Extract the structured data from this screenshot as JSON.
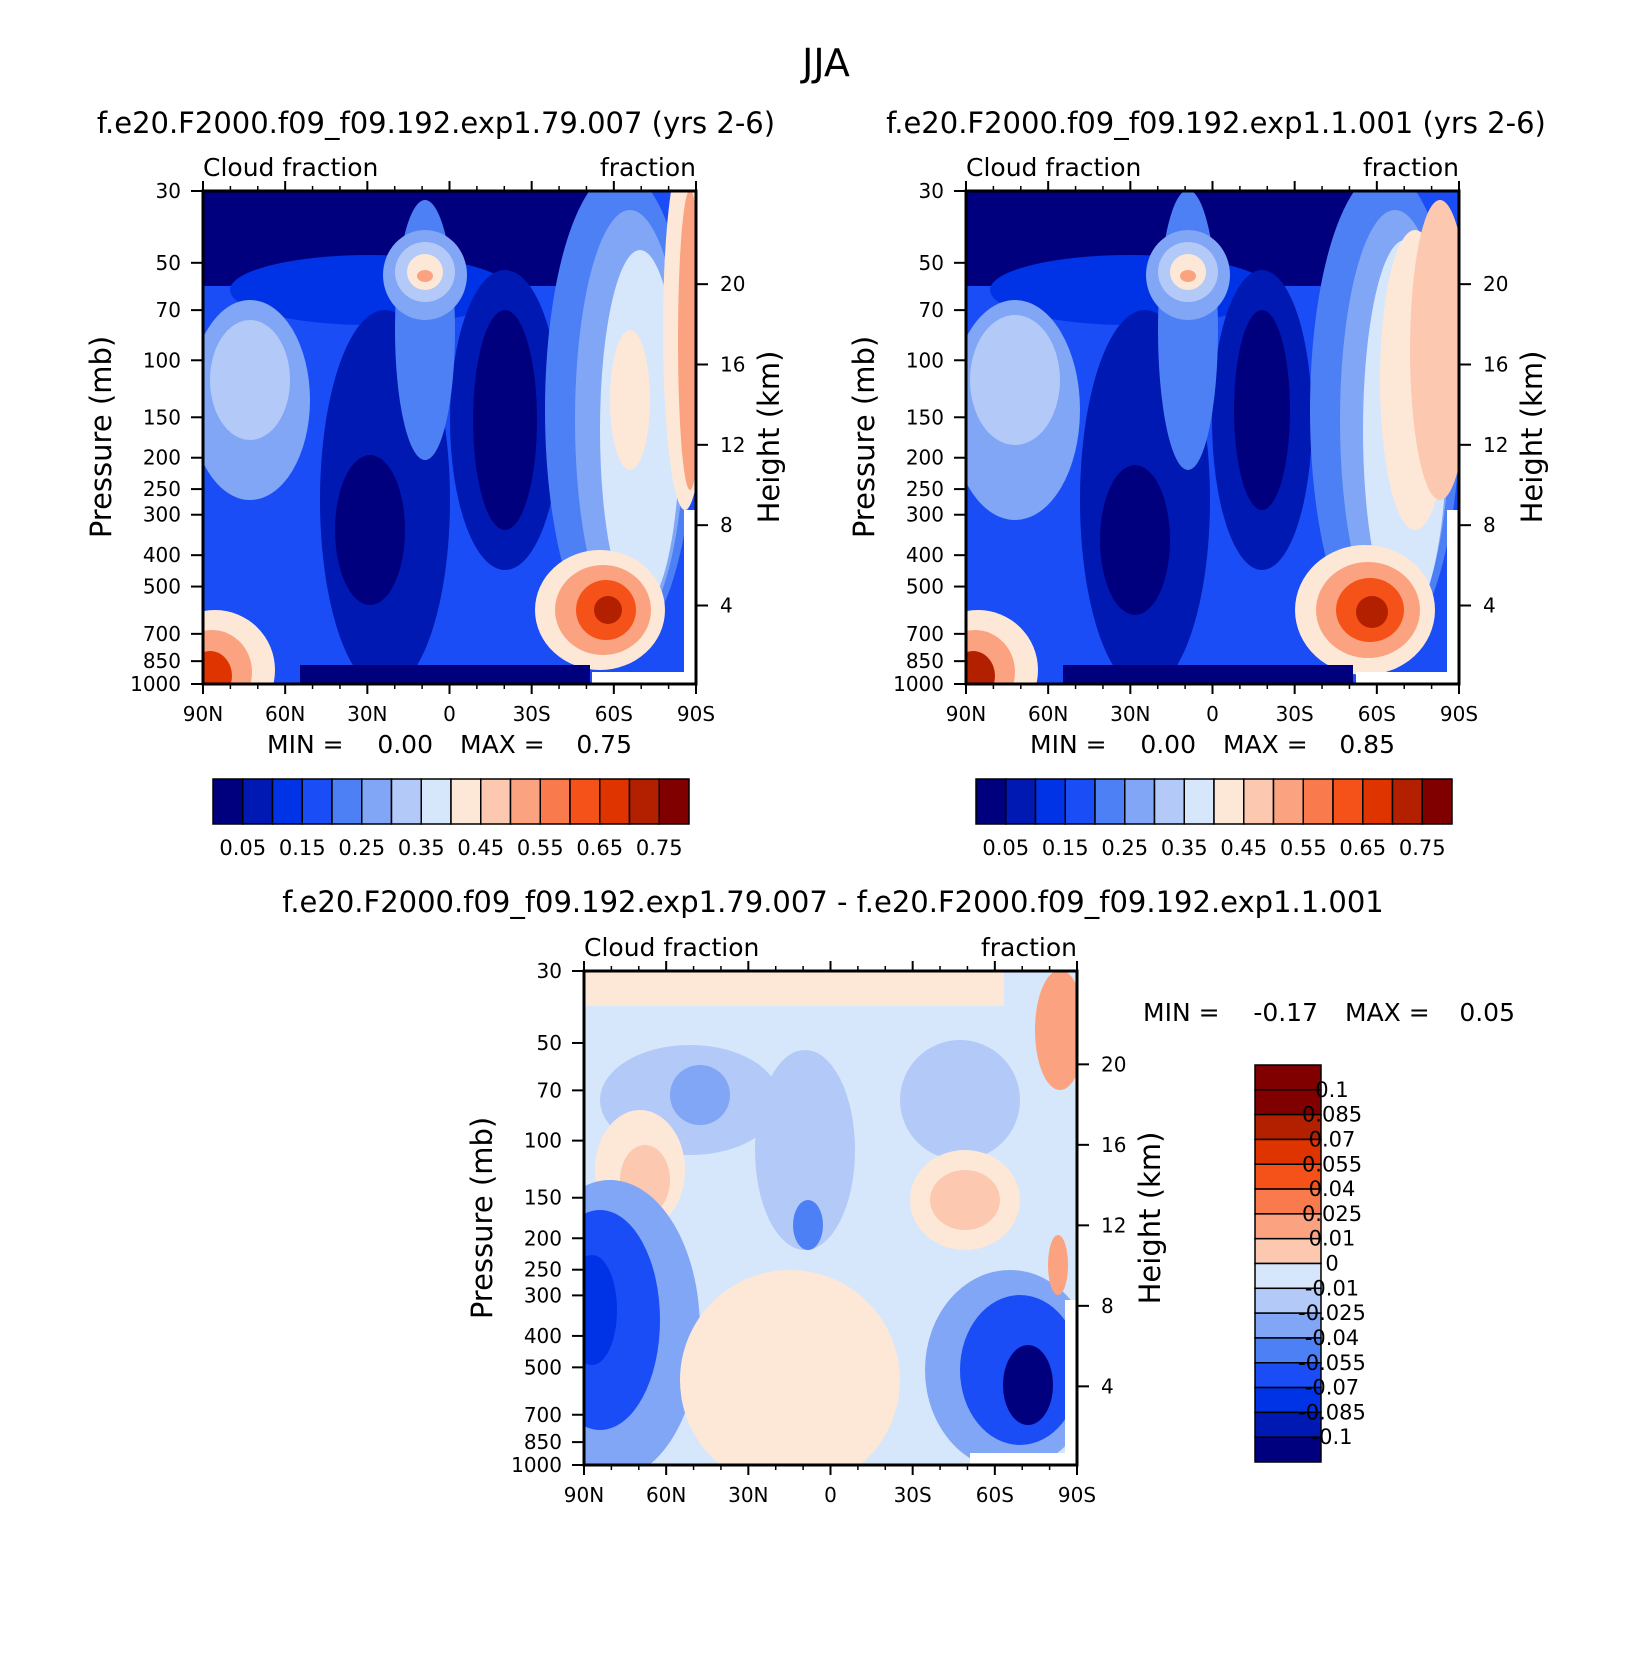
{
  "figure": {
    "season": "JJA"
  },
  "palettes": {
    "blue_red_16": [
      "#00007f",
      "#0019b3",
      "#0033e6",
      "#1a4df5",
      "#4d80f5",
      "#80a6f5",
      "#b3c9f7",
      "#d6e6fb",
      "#fde8d8",
      "#fcc9b0",
      "#fba380",
      "#f97a4d",
      "#f5521a",
      "#df3300",
      "#b32000",
      "#800000"
    ],
    "diff_14": [
      "#00007f",
      "#0019b3",
      "#0033e6",
      "#1a4df5",
      "#4d80f5",
      "#80a6f5",
      "#b3c9f7",
      "#d6e6fb",
      "#fde8d8",
      "#fcc9b0",
      "#fba380",
      "#f97a4d",
      "#f5521a",
      "#df3300",
      "#b32000",
      "#800000"
    ]
  },
  "chart_data": [
    {
      "type": "heatmap",
      "title": "f.e20.F2000.f09_f09.192.exp1.79.007 (yrs 2-6)",
      "left_label": "Cloud fraction",
      "right_label": "fraction",
      "ylabel": "Pressure (mb)",
      "ylabel_right": "Height (km)",
      "x_ticks": [
        "90N",
        "60N",
        "30N",
        "0",
        "30S",
        "60S",
        "90S"
      ],
      "y_ticks": [
        "30",
        "50",
        "70",
        "100",
        "150",
        "200",
        "250",
        "300",
        "400",
        "500",
        "700",
        "850",
        "1000"
      ],
      "y_ticks_right": [
        "20",
        "16",
        "12",
        "8",
        "4"
      ],
      "min_text": "MIN =",
      "min_value": "0.00",
      "max_text": "MAX =",
      "max_value": "0.75",
      "colorbar": {
        "orientation": "horizontal",
        "labels": [
          "0.05",
          "0.15",
          "0.25",
          "0.35",
          "0.45",
          "0.55",
          "0.65",
          "0.75"
        ]
      },
      "features": [
        {
          "lat": 10,
          "p": 200,
          "value": 0.45
        },
        {
          "lat": -57,
          "p": 850,
          "value": 0.75
        },
        {
          "lat": 83,
          "p": 1000,
          "value": 0.7
        },
        {
          "lat": 20,
          "p": 700,
          "value": 0.02
        },
        {
          "lat": -15,
          "p": 450,
          "value": 0.02
        }
      ]
    },
    {
      "type": "heatmap",
      "title": "f.e20.F2000.f09_f09.192.exp1.1.001 (yrs 2-6)",
      "left_label": "Cloud fraction",
      "right_label": "fraction",
      "ylabel": "Pressure (mb)",
      "ylabel_right": "Height (km)",
      "x_ticks": [
        "90N",
        "60N",
        "30N",
        "0",
        "30S",
        "60S",
        "90S"
      ],
      "y_ticks": [
        "30",
        "50",
        "70",
        "100",
        "150",
        "200",
        "250",
        "300",
        "400",
        "500",
        "700",
        "850",
        "1000"
      ],
      "y_ticks_right": [
        "20",
        "16",
        "12",
        "8",
        "4"
      ],
      "min_text": "MIN =",
      "min_value": "0.00",
      "max_text": "MAX =",
      "max_value": "0.85",
      "colorbar": {
        "orientation": "horizontal",
        "labels": [
          "0.05",
          "0.15",
          "0.25",
          "0.35",
          "0.45",
          "0.55",
          "0.65",
          "0.75"
        ]
      },
      "features": [
        {
          "lat": 10,
          "p": 200,
          "value": 0.45
        },
        {
          "lat": -57,
          "p": 850,
          "value": 0.8
        },
        {
          "lat": 83,
          "p": 1000,
          "value": 0.75
        },
        {
          "lat": 25,
          "p": 720,
          "value": 0.02
        },
        {
          "lat": -15,
          "p": 430,
          "value": 0.02
        }
      ]
    },
    {
      "type": "heatmap",
      "title": "f.e20.F2000.f09_f09.192.exp1.79.007 - f.e20.F2000.f09_f09.192.exp1.1.001",
      "left_label": "Cloud fraction",
      "right_label": "fraction",
      "ylabel": "Pressure (mb)",
      "ylabel_right": "Height (km)",
      "x_ticks": [
        "90N",
        "60N",
        "30N",
        "0",
        "30S",
        "60S",
        "90S"
      ],
      "y_ticks": [
        "30",
        "50",
        "70",
        "100",
        "150",
        "200",
        "250",
        "300",
        "400",
        "500",
        "700",
        "850",
        "1000"
      ],
      "y_ticks_right": [
        "20",
        "16",
        "12",
        "8",
        "4"
      ],
      "min_text": "MIN =",
      "min_value": "-0.17",
      "max_text": "MAX =",
      "max_value": "0.05",
      "colorbar": {
        "orientation": "vertical",
        "labels": [
          "0.1",
          "0.085",
          "0.07",
          "0.055",
          "0.04",
          "0.025",
          "0.01",
          "0",
          "-0.01",
          "-0.025",
          "-0.04",
          "-0.055",
          "-0.07",
          "-0.085",
          "-0.1"
        ]
      },
      "features": [
        {
          "lat": 83,
          "p": 700,
          "value": -0.1
        },
        {
          "lat": -70,
          "p": 850,
          "value": -0.1
        },
        {
          "lat": 70,
          "p": 450,
          "value": 0.025
        },
        {
          "lat": -45,
          "p": 450,
          "value": 0.025
        },
        {
          "lat": -85,
          "p": 150,
          "value": 0.04
        }
      ]
    }
  ]
}
